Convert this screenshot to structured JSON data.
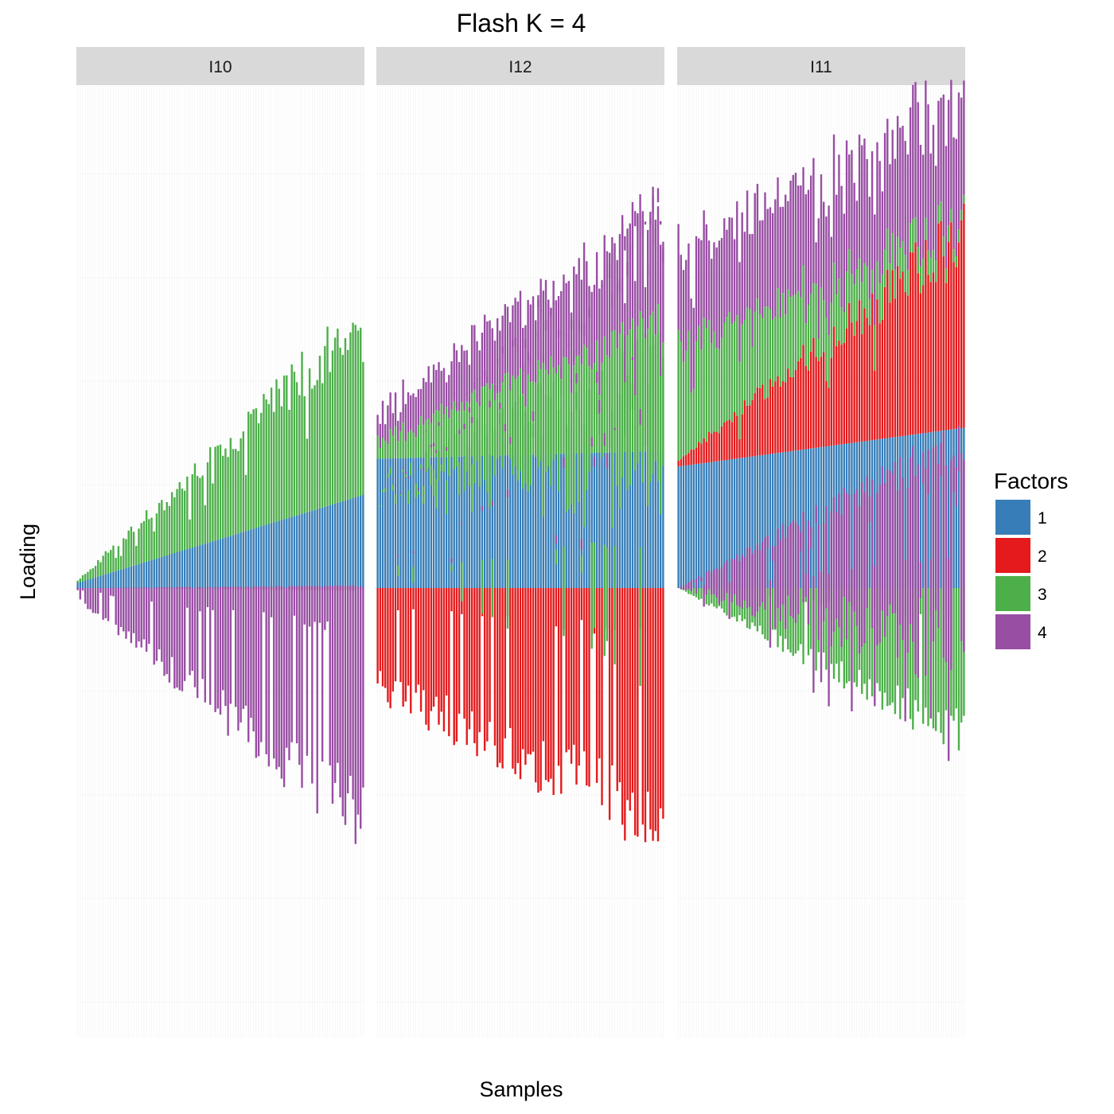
{
  "chart_data": {
    "type": "bar",
    "stacked": true,
    "diverging": true,
    "title": "Flash K = 4",
    "xlabel": "Samples",
    "ylabel": "Loading",
    "grid": true,
    "legend": {
      "title": "Factors",
      "placement": "right",
      "entries": [
        {
          "label": "1",
          "color": "#377EB8"
        },
        {
          "label": "2",
          "color": "#E41A1C"
        },
        {
          "label": "3",
          "color": "#4DAF4A"
        },
        {
          "label": "4",
          "color": "#984EA3"
        }
      ]
    },
    "ylim": [
      -0.88,
      0.98
    ],
    "facets": [
      {
        "label": "I10",
        "num_samples": 113,
        "series": [
          {
            "name": "1",
            "pos_start": 0.01,
            "pos_end": 0.18,
            "neg_start": 0.0,
            "neg_end": 0.0
          },
          {
            "name": "2",
            "pos_start": 0.0,
            "pos_end": 0.0,
            "neg_start": 0.0,
            "neg_end": -0.005
          },
          {
            "name": "3",
            "pos_start": 0.005,
            "pos_end": 0.34,
            "neg_start": 0.0,
            "neg_end": 0.0
          },
          {
            "name": "4",
            "pos_start": 0.0,
            "pos_end": 0.0,
            "neg_start": -0.02,
            "neg_end": -0.45
          }
        ]
      },
      {
        "label": "I12",
        "num_samples": 113,
        "series": [
          {
            "name": "1",
            "pos_start": 0.25,
            "pos_end": 0.265,
            "neg_start": 0.0,
            "neg_end": 0.0
          },
          {
            "name": "2",
            "pos_start": 0.0,
            "pos_end": 0.0,
            "neg_start": -0.19,
            "neg_end": -0.45
          },
          {
            "name": "3",
            "pos_start": 0.04,
            "pos_end": 0.25,
            "neg_start": 0.0,
            "neg_end": -0.25
          },
          {
            "name": "4",
            "pos_start": 0.06,
            "pos_end": 0.22,
            "neg_start": 0.0,
            "neg_end": -0.03
          }
        ]
      },
      {
        "label": "I11",
        "num_samples": 113,
        "series": [
          {
            "name": "1",
            "pos_start": 0.235,
            "pos_end": 0.31,
            "neg_start": 0.0,
            "neg_end": 0.0
          },
          {
            "name": "2",
            "pos_start": 0.01,
            "pos_end": 0.38,
            "neg_start": 0.0,
            "neg_end": 0.0
          },
          {
            "name": "3",
            "pos_start": 0.22,
            "pos_end": 0.02,
            "neg_start": 0.0,
            "neg_end": -0.29
          },
          {
            "name": "4",
            "pos_start": 0.18,
            "pos_end": 0.25,
            "neg_start": 0.0,
            "neg_end": -0.42
          }
        ]
      }
    ]
  }
}
